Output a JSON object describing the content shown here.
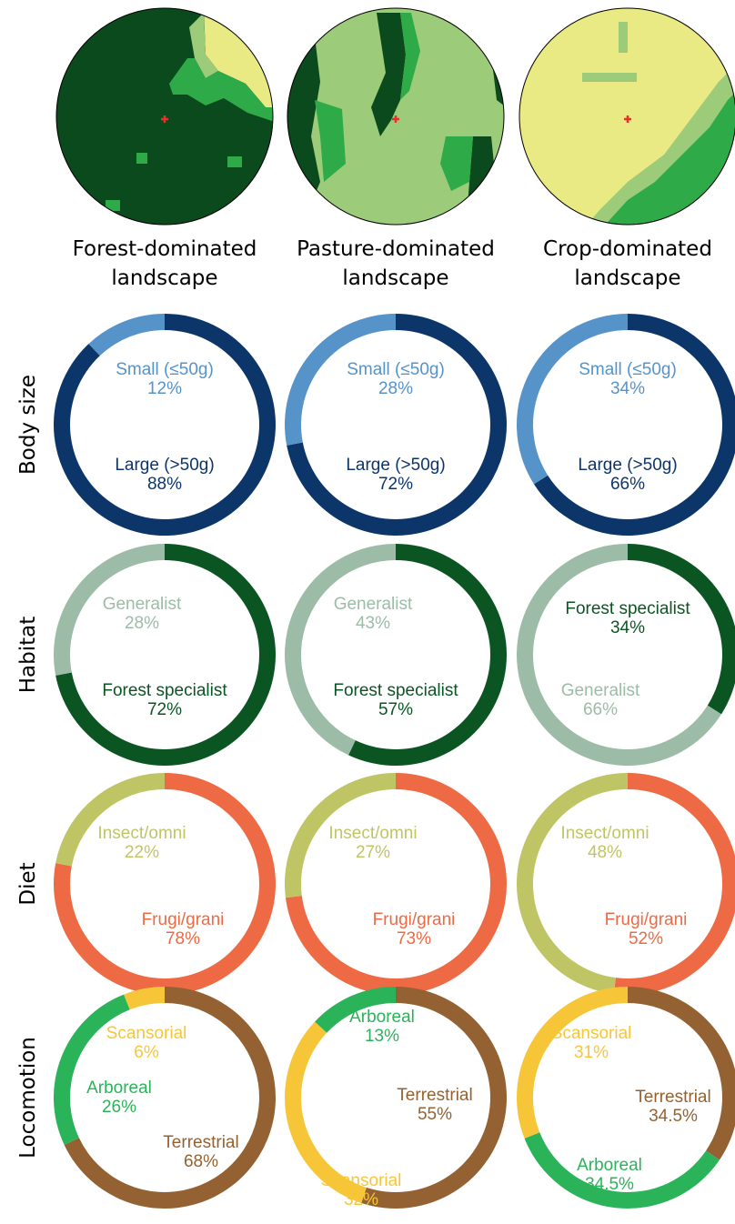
{
  "colors": {
    "forest": "#0b4a1c",
    "forest_mid": "#2faa48",
    "pasture": "#9ccb7a",
    "crop": "#eaea85",
    "marker": "#e8312c",
    "small": "#5693c9",
    "large": "#0c356a",
    "generalist": "#9cbca7",
    "forest_specialist": "#0b5523",
    "insect_omni": "#bfc565",
    "frugi_grani": "#ee6a44",
    "scansorial": "#f7c638",
    "arboreal": "#2bb35a",
    "terrestrial": "#946232"
  },
  "landscapes": [
    {
      "label_line1": "Forest-dominated",
      "label_line2": "landscape",
      "dominant": "forest"
    },
    {
      "label_line1": "Pasture-dominated",
      "label_line2": "landscape",
      "dominant": "pasture"
    },
    {
      "label_line1": "Crop-dominated",
      "label_line2": "landscape",
      "dominant": "crop"
    }
  ],
  "chart_data": {
    "type": "donut-grid",
    "rows": [
      "Body size",
      "Habitat",
      "Diet",
      "Locomotion"
    ],
    "columns": [
      "Forest-dominated landscape",
      "Pasture-dominated landscape",
      "Crop-dominated landscape"
    ],
    "charts": [
      [
        {
          "segments": [
            {
              "name": "Large (>50g)",
              "value": "88%",
              "pct": 88,
              "color": "#0c356a"
            },
            {
              "name": "Small (≤50g)",
              "value": "12%",
              "pct": 12,
              "color": "#5693c9"
            }
          ]
        },
        {
          "segments": [
            {
              "name": "Large (>50g)",
              "value": "72%",
              "pct": 72,
              "color": "#0c356a"
            },
            {
              "name": "Small (≤50g)",
              "value": "28%",
              "pct": 28,
              "color": "#5693c9"
            }
          ]
        },
        {
          "segments": [
            {
              "name": "Large (>50g)",
              "value": "66%",
              "pct": 66,
              "color": "#0c356a"
            },
            {
              "name": "Small (≤50g)",
              "value": "34%",
              "pct": 34,
              "color": "#5693c9"
            }
          ]
        }
      ],
      [
        {
          "segments": [
            {
              "name": "Forest specialist",
              "value": "72%",
              "pct": 72,
              "color": "#0b5523"
            },
            {
              "name": "Generalist",
              "value": "28%",
              "pct": 28,
              "color": "#9cbca7"
            }
          ]
        },
        {
          "segments": [
            {
              "name": "Forest specialist",
              "value": "57%",
              "pct": 57,
              "color": "#0b5523"
            },
            {
              "name": "Generalist",
              "value": "43%",
              "pct": 43,
              "color": "#9cbca7"
            }
          ]
        },
        {
          "segments": [
            {
              "name": "Forest specialist",
              "value": "34%",
              "pct": 34,
              "color": "#0b5523"
            },
            {
              "name": "Generalist",
              "value": "66%",
              "pct": 66,
              "color": "#9cbca7"
            }
          ]
        }
      ],
      [
        {
          "segments": [
            {
              "name": "Frugi/grani",
              "value": "78%",
              "pct": 78,
              "color": "#ee6a44"
            },
            {
              "name": "Insect/omni",
              "value": "22%",
              "pct": 22,
              "color": "#bfc565"
            }
          ]
        },
        {
          "segments": [
            {
              "name": "Frugi/grani",
              "value": "73%",
              "pct": 73,
              "color": "#ee6a44"
            },
            {
              "name": "Insect/omni",
              "value": "27%",
              "pct": 27,
              "color": "#bfc565"
            }
          ]
        },
        {
          "segments": [
            {
              "name": "Frugi/grani",
              "value": "52%",
              "pct": 52,
              "color": "#ee6a44"
            },
            {
              "name": "Insect/omni",
              "value": "48%",
              "pct": 48,
              "color": "#bfc565"
            }
          ]
        }
      ],
      [
        {
          "segments": [
            {
              "name": "Terrestrial",
              "value": "68%",
              "pct": 68,
              "color": "#946232"
            },
            {
              "name": "Arboreal",
              "value": "26%",
              "pct": 26,
              "color": "#2bb35a"
            },
            {
              "name": "Scansorial",
              "value": "6%",
              "pct": 6,
              "color": "#f7c638"
            }
          ]
        },
        {
          "segments": [
            {
              "name": "Terrestrial",
              "value": "55%",
              "pct": 55,
              "color": "#946232"
            },
            {
              "name": "Scansorial",
              "value": "32%",
              "pct": 32,
              "color": "#f7c638"
            },
            {
              "name": "Arboreal",
              "value": "13%",
              "pct": 13,
              "color": "#2bb35a"
            }
          ]
        },
        {
          "segments": [
            {
              "name": "Terrestrial",
              "value": "34.5%",
              "pct": 34.5,
              "color": "#946232"
            },
            {
              "name": "Arboreal",
              "value": "34.5%",
              "pct": 34.5,
              "color": "#2bb35a"
            },
            {
              "name": "Scansorial",
              "value": "31%",
              "pct": 31,
              "color": "#f7c638"
            }
          ]
        }
      ]
    ]
  }
}
